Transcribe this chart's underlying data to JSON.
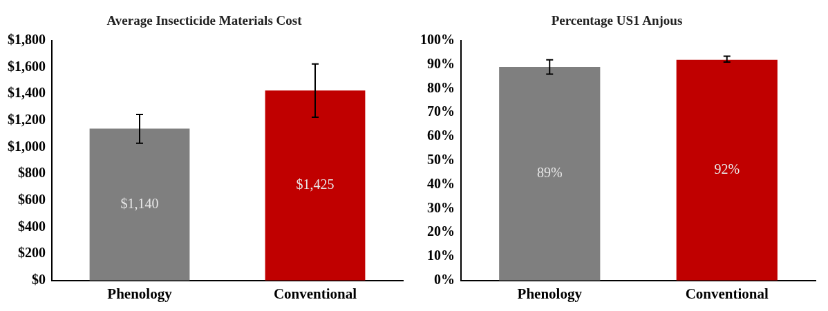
{
  "chart_data": [
    {
      "type": "bar",
      "title": "Average Insecticide Materials Cost",
      "categories": [
        "Phenology",
        "Conventional"
      ],
      "values": [
        1140,
        1425
      ],
      "colors": [
        "#7f7f7f",
        "#c00000"
      ],
      "errors": [
        [
          1030,
          1245
        ],
        [
          1225,
          1625
        ]
      ],
      "value_labels": [
        "$1,140",
        "$1,425"
      ],
      "ylim": [
        0,
        1800
      ],
      "yticks": [
        {
          "value": 0,
          "label": "$0"
        },
        {
          "value": 200,
          "label": "$200"
        },
        {
          "value": 400,
          "label": "$400"
        },
        {
          "value": 600,
          "label": "$600"
        },
        {
          "value": 800,
          "label": "$800"
        },
        {
          "value": 1000,
          "label": "$1,000"
        },
        {
          "value": 1200,
          "label": "$1,200"
        },
        {
          "value": 1400,
          "label": "$1,400"
        },
        {
          "value": 1600,
          "label": "$1,600"
        },
        {
          "value": 1800,
          "label": "$1,800"
        }
      ],
      "grid": false
    },
    {
      "type": "bar",
      "title": "Percentage US1 Anjous",
      "categories": [
        "Phenology",
        "Conventional"
      ],
      "values": [
        89,
        92
      ],
      "colors": [
        "#7f7f7f",
        "#c00000"
      ],
      "errors": [
        [
          86,
          92
        ],
        [
          91,
          93.5
        ]
      ],
      "value_labels": [
        "89%",
        "92%"
      ],
      "ylim": [
        0,
        100
      ],
      "yticks": [
        {
          "value": 0,
          "label": "0%"
        },
        {
          "value": 10,
          "label": "10%"
        },
        {
          "value": 20,
          "label": "20%"
        },
        {
          "value": 30,
          "label": "30%"
        },
        {
          "value": 40,
          "label": "40%"
        },
        {
          "value": 50,
          "label": "50%"
        },
        {
          "value": 60,
          "label": "60%"
        },
        {
          "value": 70,
          "label": "70%"
        },
        {
          "value": 80,
          "label": "80%"
        },
        {
          "value": 90,
          "label": "90%"
        },
        {
          "value": 100,
          "label": "100%"
        }
      ],
      "grid": false
    }
  ]
}
